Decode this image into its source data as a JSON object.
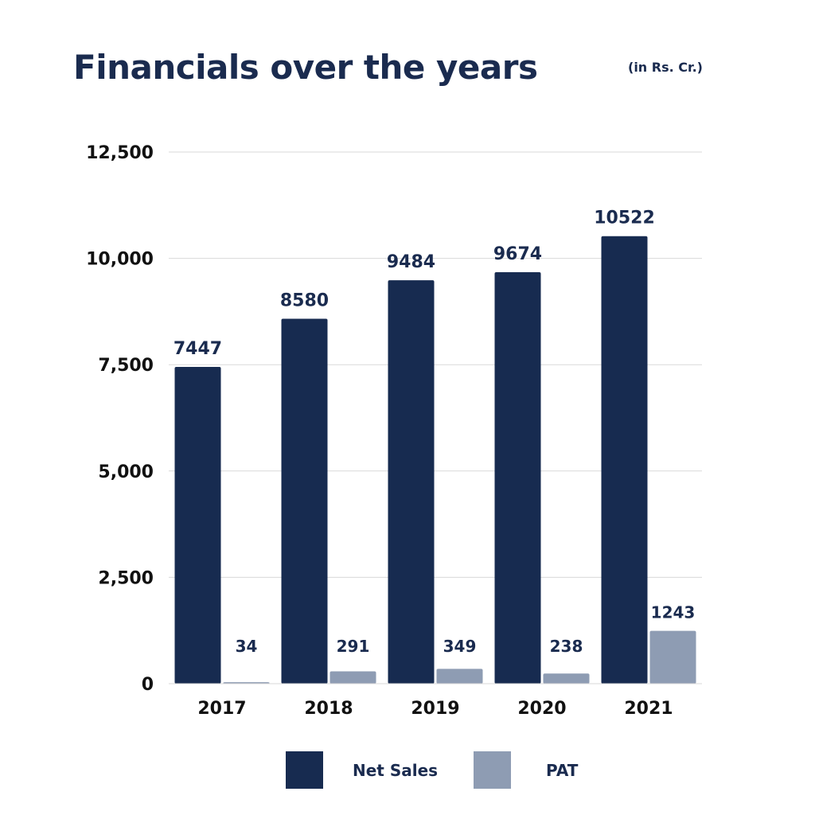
{
  "title": "Financials over the years",
  "unit_note": "(in Rs. Cr.)",
  "chart_data": {
    "type": "bar",
    "categories": [
      "2017",
      "2018",
      "2019",
      "2020",
      "2021"
    ],
    "series": [
      {
        "name": "Net Sales",
        "color": "#172b50",
        "values": [
          7447,
          8580,
          9484,
          9674,
          10522
        ]
      },
      {
        "name": "PAT",
        "color": "#8e9cb3",
        "values": [
          34,
          291,
          349,
          238,
          1243
        ]
      }
    ],
    "ylim": [
      0,
      12500
    ],
    "yticks": [
      0,
      2500,
      5000,
      7500,
      10000,
      12500
    ],
    "ytick_labels": [
      "0",
      "2,500",
      "5,000",
      "7,500",
      "10,000",
      "12,500"
    ],
    "grid": true,
    "legend_position": "bottom"
  }
}
